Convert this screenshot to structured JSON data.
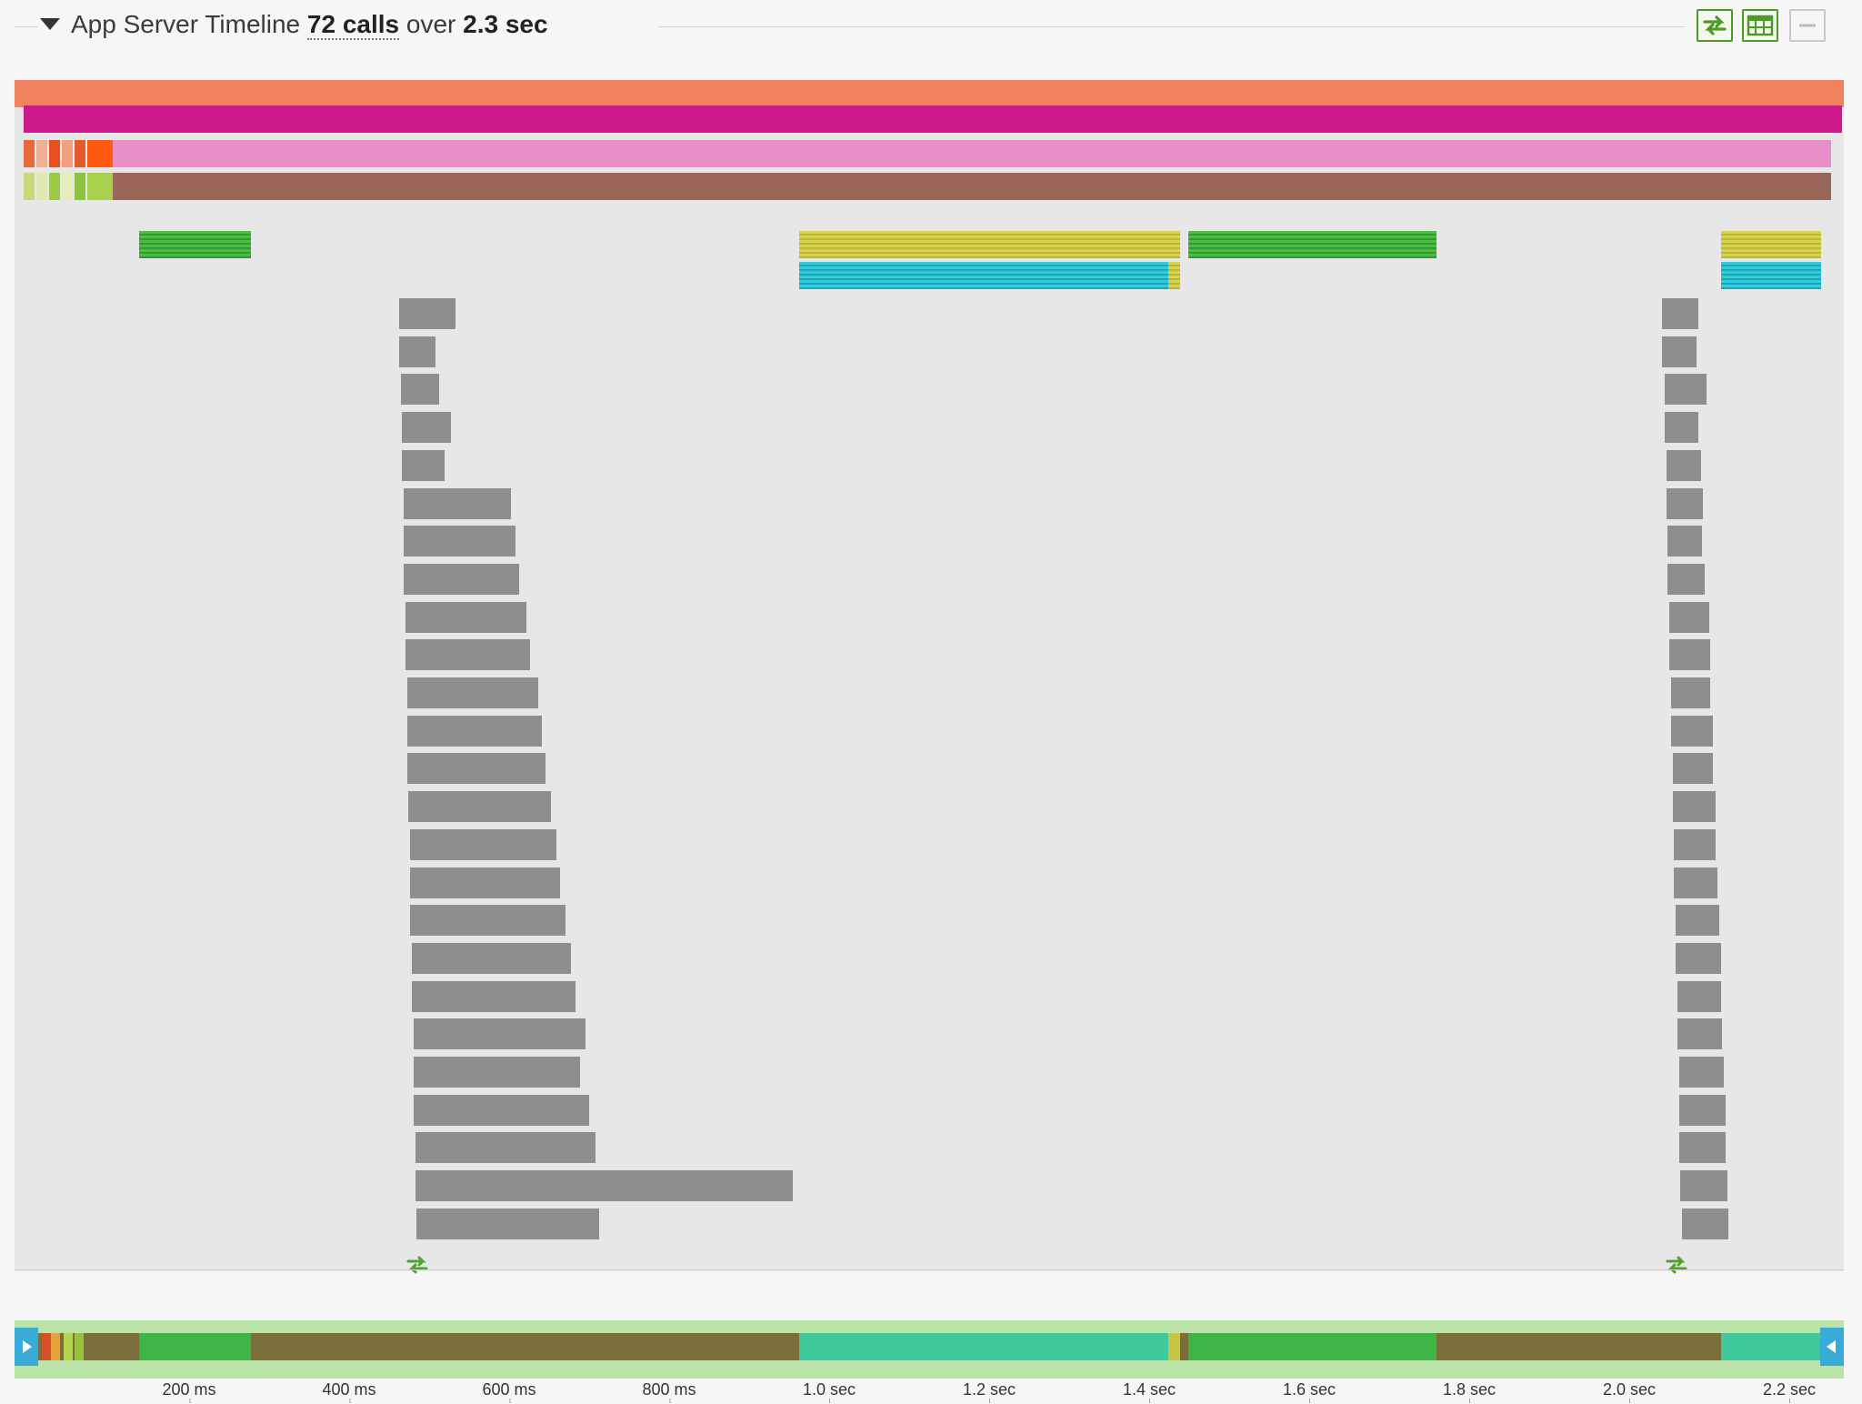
{
  "header": {
    "title": "App Server Timeline",
    "calls": "72 calls",
    "over": "over",
    "duration": "2.3 sec",
    "buttons": [
      {
        "name": "sync-arrows-icon",
        "style": "green"
      },
      {
        "name": "table-icon",
        "style": "green"
      },
      {
        "name": "minimize-icon",
        "style": "gray"
      }
    ]
  },
  "axis": {
    "ticks": [
      "200 ms",
      "400 ms",
      "600 ms",
      "800 ms",
      "1.0 sec",
      "1.2 sec",
      "1.4 sec",
      "1.6 sec",
      "1.8 sec",
      "2.0 sec",
      "2.2 sec"
    ],
    "max_sec": 2.3
  },
  "timeline": {
    "top_bars": [
      {
        "start": 0.0,
        "end": 2.3,
        "color": "#f0825e"
      },
      {
        "start": 0.012,
        "end": 2.3,
        "color": "#cc1a8b"
      },
      {
        "start": 0.12,
        "end": 2.29,
        "color": "#ea8ec8"
      },
      {
        "start": 0.12,
        "end": 2.29,
        "color": "#9a6659"
      }
    ],
    "segments": [
      {
        "start": 0.155,
        "end": 0.295,
        "row": 0,
        "style": "green"
      },
      {
        "start": 0.98,
        "end": 1.455,
        "row": 0,
        "style": "yellow"
      },
      {
        "start": 1.465,
        "end": 1.775,
        "row": 0,
        "style": "green"
      },
      {
        "start": 2.13,
        "end": 2.255,
        "row": 0,
        "style": "yellow"
      },
      {
        "start": 0.98,
        "end": 1.44,
        "row": 1,
        "style": "cyan"
      },
      {
        "start": 1.44,
        "end": 1.455,
        "row": 1,
        "style": "yellow"
      },
      {
        "start": 2.13,
        "end": 2.255,
        "row": 1,
        "style": "cyan"
      }
    ],
    "calls_left": [
      [
        0.48,
        0.55
      ],
      [
        0.48,
        0.525
      ],
      [
        0.482,
        0.53
      ],
      [
        0.483,
        0.545
      ],
      [
        0.484,
        0.537
      ],
      [
        0.486,
        0.62
      ],
      [
        0.486,
        0.625
      ],
      [
        0.486,
        0.63
      ],
      [
        0.488,
        0.639
      ],
      [
        0.488,
        0.644
      ],
      [
        0.49,
        0.654
      ],
      [
        0.49,
        0.658
      ],
      [
        0.49,
        0.663
      ],
      [
        0.492,
        0.67
      ],
      [
        0.494,
        0.676
      ],
      [
        0.494,
        0.681
      ],
      [
        0.494,
        0.688
      ],
      [
        0.496,
        0.695
      ],
      [
        0.496,
        0.7
      ],
      [
        0.498,
        0.713
      ],
      [
        0.498,
        0.706
      ],
      [
        0.498,
        0.717
      ],
      [
        0.5,
        0.725
      ],
      [
        0.5,
        0.972
      ],
      [
        0.502,
        0.73
      ]
    ],
    "calls_right": [
      [
        2.057,
        2.102
      ],
      [
        2.057,
        2.1
      ],
      [
        2.06,
        2.112
      ],
      [
        2.06,
        2.102
      ],
      [
        2.062,
        2.106
      ],
      [
        2.062,
        2.108
      ],
      [
        2.064,
        2.107
      ],
      [
        2.064,
        2.11
      ],
      [
        2.066,
        2.116
      ],
      [
        2.066,
        2.117
      ],
      [
        2.068,
        2.117
      ],
      [
        2.068,
        2.12
      ],
      [
        2.07,
        2.12
      ],
      [
        2.07,
        2.124
      ],
      [
        2.072,
        2.124
      ],
      [
        2.072,
        2.126
      ],
      [
        2.074,
        2.128
      ],
      [
        2.074,
        2.13
      ],
      [
        2.076,
        2.131
      ],
      [
        2.076,
        2.132
      ],
      [
        2.078,
        2.134
      ],
      [
        2.078,
        2.136
      ],
      [
        2.078,
        2.136
      ],
      [
        2.08,
        2.138
      ],
      [
        2.082,
        2.14
      ]
    ],
    "marker_icons": [
      {
        "name": "sync-arrows-icon",
        "at": 0.494
      },
      {
        "name": "sync-arrows-icon",
        "at": 2.066
      }
    ]
  },
  "overview": {
    "segments": [
      {
        "start": 0.155,
        "end": 0.295,
        "color": "#3db443"
      },
      {
        "start": 0.98,
        "end": 1.44,
        "color": "#3ec89b"
      },
      {
        "start": 1.44,
        "end": 1.455,
        "color": "#c7c544"
      },
      {
        "start": 1.465,
        "end": 1.775,
        "color": "#3db443"
      },
      {
        "start": 2.13,
        "end": 2.255,
        "color": "#3ec89b"
      }
    ]
  },
  "colors": {
    "accent_green": "#4f9a27",
    "call_bar": "#8e8e8e",
    "handle": "#3aaad6"
  }
}
